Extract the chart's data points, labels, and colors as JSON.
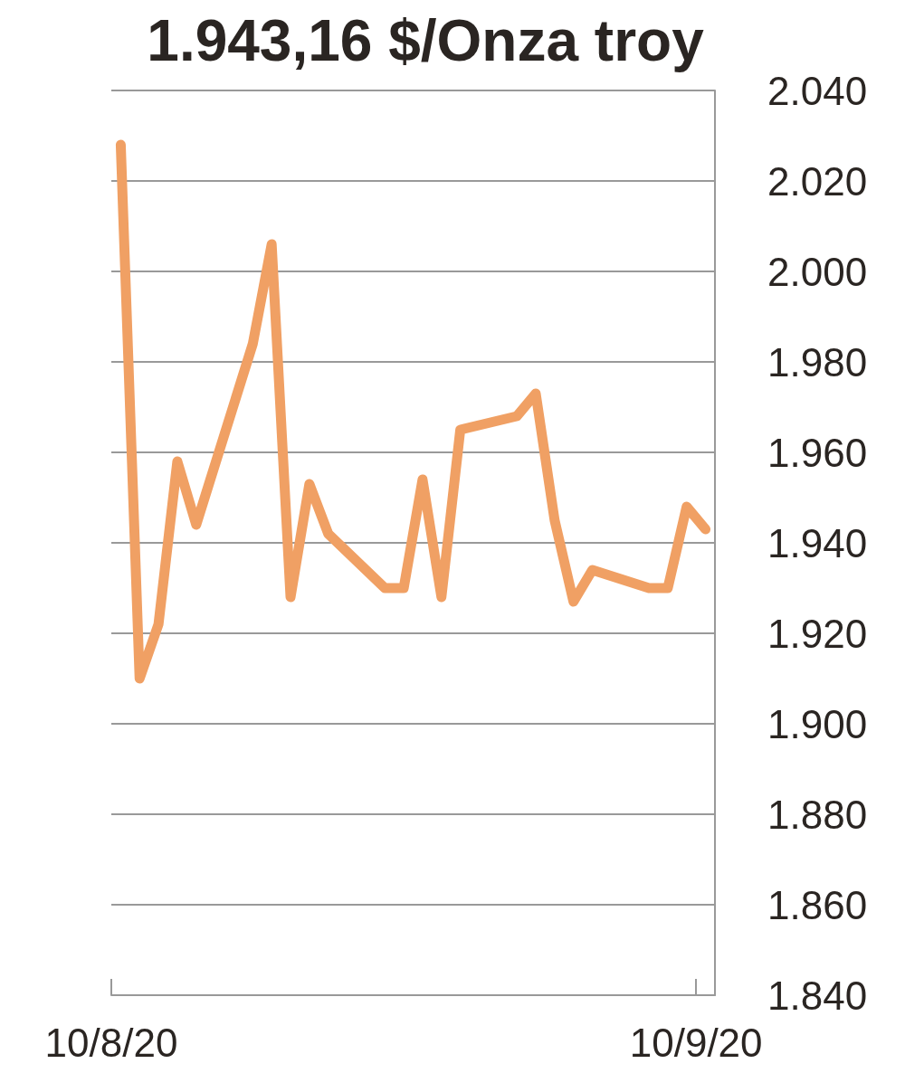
{
  "chart_data": {
    "type": "line",
    "title": "1.943,16 $/Onza troy",
    "x": [
      "2020-08-10T12:00",
      "2020-08-11T12:00",
      "2020-08-12T12:00",
      "2020-08-13T12:00",
      "2020-08-14T12:00",
      "2020-08-17T12:00",
      "2020-08-18T12:00",
      "2020-08-19T12:00",
      "2020-08-20T12:00",
      "2020-08-21T12:00",
      "2020-08-24T12:00",
      "2020-08-25T12:00",
      "2020-08-26T12:00",
      "2020-08-27T12:00",
      "2020-08-28T12:00",
      "2020-08-31T12:00",
      "2020-09-01T12:00",
      "2020-09-02T12:00",
      "2020-09-03T12:00",
      "2020-09-04T12:00",
      "2020-09-07T12:00",
      "2020-09-08T12:00",
      "2020-09-09T12:00",
      "2020-09-10T12:00"
    ],
    "series": [
      {
        "color": "#f0a064",
        "values": [
          2028,
          1910,
          1922,
          1958,
          1944,
          1984,
          2006,
          1928,
          1953,
          1942,
          1930,
          1930,
          1954,
          1928,
          1965,
          1968,
          1973,
          1945,
          1927,
          1934,
          1930,
          1930,
          1948,
          1943
        ]
      }
    ],
    "xlim": [
      "2020-08-10",
      "2020-09-11"
    ],
    "xticks": [
      {
        "value": "2020-08-10",
        "label": "10/8/20"
      },
      {
        "value": "2020-09-10",
        "label": "10/9/20"
      }
    ],
    "ylim": [
      1840,
      2040
    ],
    "yticks": [
      {
        "value": 1840,
        "label": "1.840"
      },
      {
        "value": 1860,
        "label": "1.860"
      },
      {
        "value": 1880,
        "label": "1.880"
      },
      {
        "value": 1900,
        "label": "1.900"
      },
      {
        "value": 1920,
        "label": "1.920"
      },
      {
        "value": 1940,
        "label": "1.940"
      },
      {
        "value": 1960,
        "label": "1.960"
      },
      {
        "value": 1980,
        "label": "1.980"
      },
      {
        "value": 2000,
        "label": "2.000"
      },
      {
        "value": 2020,
        "label": "2.020"
      },
      {
        "value": 2040,
        "label": "2.040"
      }
    ],
    "grid": "y",
    "line_style": "solid"
  }
}
